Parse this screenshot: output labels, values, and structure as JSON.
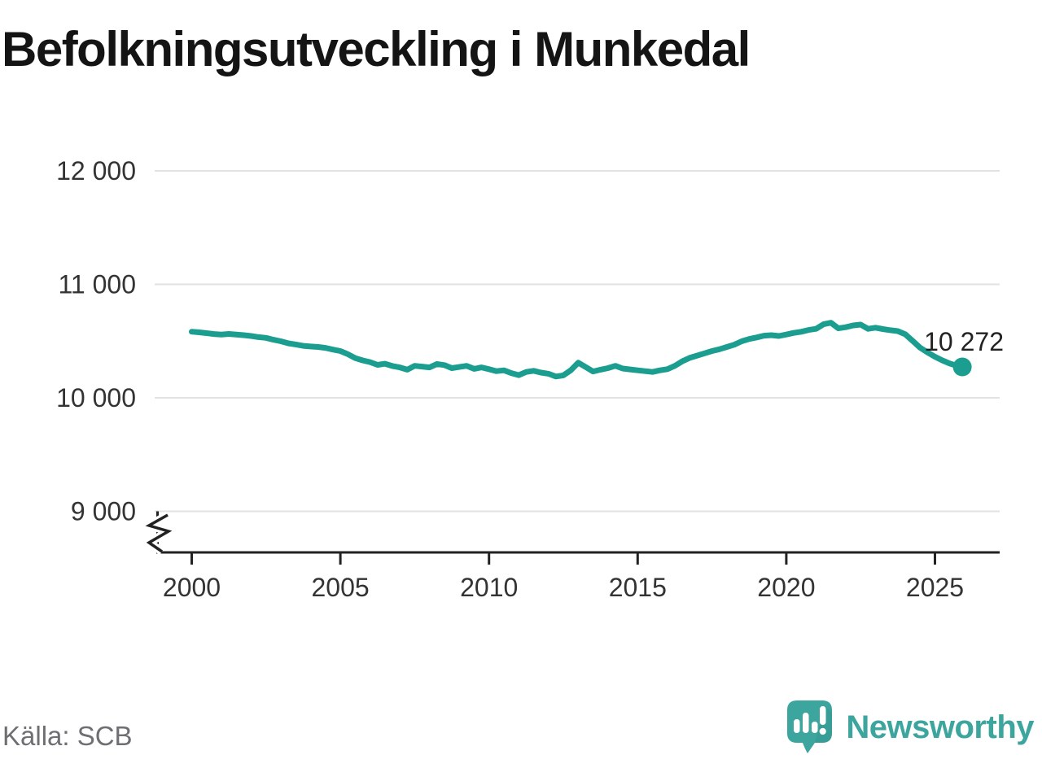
{
  "chart_data": {
    "type": "line",
    "title": "Befolkningsutveckling i Munkedal",
    "source": "Källa: SCB",
    "xlabel": "",
    "ylabel": "",
    "grid": true,
    "legend": "none",
    "axis_break_below": 9000,
    "ylim": [
      9000,
      12000
    ],
    "xlim": [
      2000,
      2026
    ],
    "x_ticks": [
      {
        "value": 2000,
        "label": "2000"
      },
      {
        "value": 2005,
        "label": "2005"
      },
      {
        "value": 2010,
        "label": "2010"
      },
      {
        "value": 2015,
        "label": "2015"
      },
      {
        "value": 2020,
        "label": "2020"
      },
      {
        "value": 2025,
        "label": "2025"
      }
    ],
    "y_ticks": [
      {
        "value": 12000,
        "label": "12 000"
      },
      {
        "value": 11000,
        "label": "11 000"
      },
      {
        "value": 10000,
        "label": "10 000"
      },
      {
        "value": 9000,
        "label": "9 000"
      }
    ],
    "end_annotation": {
      "text": "10 272",
      "value": 10272,
      "x": 2025.92
    },
    "series": [
      {
        "x": [
          2000.0,
          2000.25,
          2000.5,
          2000.75,
          2001.0,
          2001.25,
          2001.5,
          2001.75,
          2002.0,
          2002.25,
          2002.5,
          2002.75,
          2003.0,
          2003.25,
          2003.5,
          2003.75,
          2004.0,
          2004.25,
          2004.5,
          2004.75,
          2005.0,
          2005.25,
          2005.5,
          2005.75,
          2006.0,
          2006.25,
          2006.5,
          2006.75,
          2007.0,
          2007.25,
          2007.5,
          2007.75,
          2008.0,
          2008.25,
          2008.5,
          2008.75,
          2009.0,
          2009.25,
          2009.5,
          2009.75,
          2010.0,
          2010.25,
          2010.5,
          2010.75,
          2011.0,
          2011.25,
          2011.5,
          2011.75,
          2012.0,
          2012.25,
          2012.5,
          2012.75,
          2013.0,
          2013.25,
          2013.5,
          2013.75,
          2014.0,
          2014.25,
          2014.5,
          2014.75,
          2015.0,
          2015.25,
          2015.5,
          2015.75,
          2016.0,
          2016.25,
          2016.5,
          2016.75,
          2017.0,
          2017.25,
          2017.5,
          2017.75,
          2018.0,
          2018.25,
          2018.5,
          2018.75,
          2019.0,
          2019.25,
          2019.5,
          2019.75,
          2020.0,
          2020.25,
          2020.5,
          2020.75,
          2021.0,
          2021.25,
          2021.5,
          2021.75,
          2022.0,
          2022.25,
          2022.5,
          2022.75,
          2023.0,
          2023.25,
          2023.5,
          2023.75,
          2024.0,
          2024.25,
          2024.5,
          2024.75,
          2025.0,
          2025.25,
          2025.5,
          2025.75,
          2025.92
        ],
        "values": [
          10583,
          10577,
          10570,
          10562,
          10558,
          10563,
          10558,
          10552,
          10545,
          10535,
          10528,
          10512,
          10498,
          10480,
          10470,
          10458,
          10452,
          10448,
          10440,
          10425,
          10412,
          10385,
          10350,
          10330,
          10315,
          10290,
          10300,
          10280,
          10268,
          10248,
          10282,
          10275,
          10268,
          10298,
          10288,
          10262,
          10272,
          10282,
          10255,
          10268,
          10252,
          10235,
          10242,
          10218,
          10200,
          10228,
          10238,
          10222,
          10212,
          10188,
          10198,
          10242,
          10310,
          10272,
          10232,
          10248,
          10262,
          10282,
          10258,
          10250,
          10242,
          10235,
          10228,
          10242,
          10252,
          10282,
          10322,
          10352,
          10372,
          10392,
          10412,
          10428,
          10448,
          10468,
          10498,
          10518,
          10532,
          10548,
          10552,
          10545,
          10558,
          10572,
          10582,
          10598,
          10608,
          10648,
          10662,
          10612,
          10622,
          10638,
          10645,
          10608,
          10618,
          10606,
          10596,
          10588,
          10560,
          10502,
          10442,
          10400,
          10362,
          10330,
          10302,
          10282,
          10272
        ]
      }
    ]
  },
  "footer": {
    "brand": "Newsworthy"
  },
  "colors": {
    "line": "#1b9e90",
    "grid": "#e2e2e2",
    "axis": "#222222",
    "tick_text": "#333333",
    "annotation": "#222222",
    "source_text": "#6e6e73",
    "brand_teal": "#3ca59e",
    "brand_teal_dark": "#2f948d"
  }
}
